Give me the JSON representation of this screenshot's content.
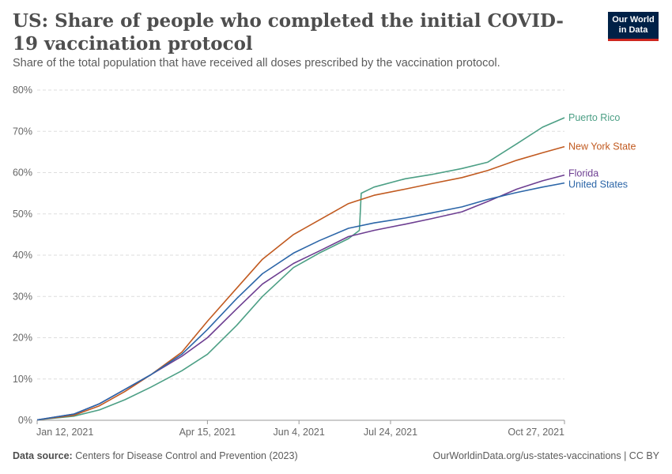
{
  "header": {
    "title": "US: Share of people who completed the initial COVID-19 vaccination protocol",
    "subtitle": "Share of the total population that have received all doses prescribed by the vaccination protocol.",
    "logo_line1": "Our World",
    "logo_line2": "in Data"
  },
  "footer": {
    "source_label": "Data source:",
    "source_text": "Centers for Disease Control and Prevention (2023)",
    "url_text": "OurWorldinData.org/us-states-vaccinations | CC BY"
  },
  "chart_data": {
    "type": "line",
    "x_tick_labels": [
      "Jan 12, 2021",
      "Apr 15, 2021",
      "Jun 4, 2021",
      "Jul 24, 2021",
      "Oct 27, 2021"
    ],
    "x_tick_dates": [
      "2021-01-12",
      "2021-04-15",
      "2021-06-04",
      "2021-07-24",
      "2021-10-27"
    ],
    "xlim": [
      "2021-01-12",
      "2021-10-27"
    ],
    "ylim": [
      0,
      80
    ],
    "y_ticks": [
      0,
      10,
      20,
      30,
      40,
      50,
      60,
      70,
      80
    ],
    "y_tick_labels": [
      "0%",
      "10%",
      "20%",
      "30%",
      "40%",
      "50%",
      "60%",
      "70%",
      "80%"
    ],
    "grid": "horizontal dashed",
    "legend": "line-end labels, right",
    "series": [
      {
        "name": "Puerto Rico",
        "color": "#4c9f85",
        "points": [
          [
            "2021-01-12",
            0.1
          ],
          [
            "2021-02-01",
            1.0
          ],
          [
            "2021-02-15",
            2.5
          ],
          [
            "2021-03-01",
            5.0
          ],
          [
            "2021-03-15",
            8.0
          ],
          [
            "2021-04-01",
            12.0
          ],
          [
            "2021-04-15",
            16.0
          ],
          [
            "2021-05-01",
            23.0
          ],
          [
            "2021-05-15",
            30.0
          ],
          [
            "2021-06-01",
            37.0
          ],
          [
            "2021-06-15",
            40.5
          ],
          [
            "2021-07-01",
            44.0
          ],
          [
            "2021-07-07",
            46.0
          ],
          [
            "2021-07-08",
            55.0
          ],
          [
            "2021-07-15",
            56.5
          ],
          [
            "2021-08-01",
            58.5
          ],
          [
            "2021-08-15",
            59.5
          ],
          [
            "2021-09-01",
            61.0
          ],
          [
            "2021-09-15",
            62.5
          ],
          [
            "2021-10-01",
            67.0
          ],
          [
            "2021-10-15",
            71.0
          ],
          [
            "2021-10-27",
            73.3
          ]
        ]
      },
      {
        "name": "New York State",
        "color": "#c15a20",
        "points": [
          [
            "2021-01-12",
            0.1
          ],
          [
            "2021-02-01",
            1.2
          ],
          [
            "2021-02-15",
            3.5
          ],
          [
            "2021-03-01",
            7.0
          ],
          [
            "2021-03-15",
            11.0
          ],
          [
            "2021-04-01",
            16.5
          ],
          [
            "2021-04-15",
            24.0
          ],
          [
            "2021-05-01",
            32.0
          ],
          [
            "2021-05-15",
            39.0
          ],
          [
            "2021-06-01",
            45.0
          ],
          [
            "2021-06-15",
            48.5
          ],
          [
            "2021-07-01",
            52.5
          ],
          [
            "2021-07-15",
            54.5
          ],
          [
            "2021-08-01",
            56.0
          ],
          [
            "2021-08-15",
            57.3
          ],
          [
            "2021-09-01",
            58.8
          ],
          [
            "2021-09-15",
            60.5
          ],
          [
            "2021-10-01",
            63.0
          ],
          [
            "2021-10-15",
            64.8
          ],
          [
            "2021-10-27",
            66.3
          ]
        ]
      },
      {
        "name": "Florida",
        "color": "#6d3e91",
        "points": [
          [
            "2021-01-12",
            0.1
          ],
          [
            "2021-02-01",
            1.5
          ],
          [
            "2021-02-15",
            4.0
          ],
          [
            "2021-03-01",
            7.5
          ],
          [
            "2021-03-15",
            11.0
          ],
          [
            "2021-04-01",
            15.5
          ],
          [
            "2021-04-15",
            20.0
          ],
          [
            "2021-05-01",
            27.0
          ],
          [
            "2021-05-15",
            33.0
          ],
          [
            "2021-06-01",
            38.0
          ],
          [
            "2021-06-15",
            41.0
          ],
          [
            "2021-07-01",
            44.5
          ],
          [
            "2021-07-15",
            46.0
          ],
          [
            "2021-08-01",
            47.5
          ],
          [
            "2021-08-15",
            48.8
          ],
          [
            "2021-09-01",
            50.5
          ],
          [
            "2021-09-15",
            53.0
          ],
          [
            "2021-10-01",
            56.0
          ],
          [
            "2021-10-15",
            58.0
          ],
          [
            "2021-10-27",
            59.4
          ]
        ]
      },
      {
        "name": "United States",
        "color": "#2c66a8",
        "points": [
          [
            "2021-01-12",
            0.1
          ],
          [
            "2021-02-01",
            1.5
          ],
          [
            "2021-02-15",
            4.0
          ],
          [
            "2021-03-01",
            7.5
          ],
          [
            "2021-03-15",
            11.0
          ],
          [
            "2021-04-01",
            16.0
          ],
          [
            "2021-04-15",
            22.0
          ],
          [
            "2021-05-01",
            29.5
          ],
          [
            "2021-05-15",
            35.5
          ],
          [
            "2021-06-01",
            40.5
          ],
          [
            "2021-06-15",
            43.5
          ],
          [
            "2021-07-01",
            46.5
          ],
          [
            "2021-07-15",
            47.8
          ],
          [
            "2021-08-01",
            49.0
          ],
          [
            "2021-08-15",
            50.2
          ],
          [
            "2021-09-01",
            51.7
          ],
          [
            "2021-09-15",
            53.5
          ],
          [
            "2021-10-01",
            55.2
          ],
          [
            "2021-10-15",
            56.5
          ],
          [
            "2021-10-27",
            57.5
          ]
        ]
      }
    ]
  }
}
